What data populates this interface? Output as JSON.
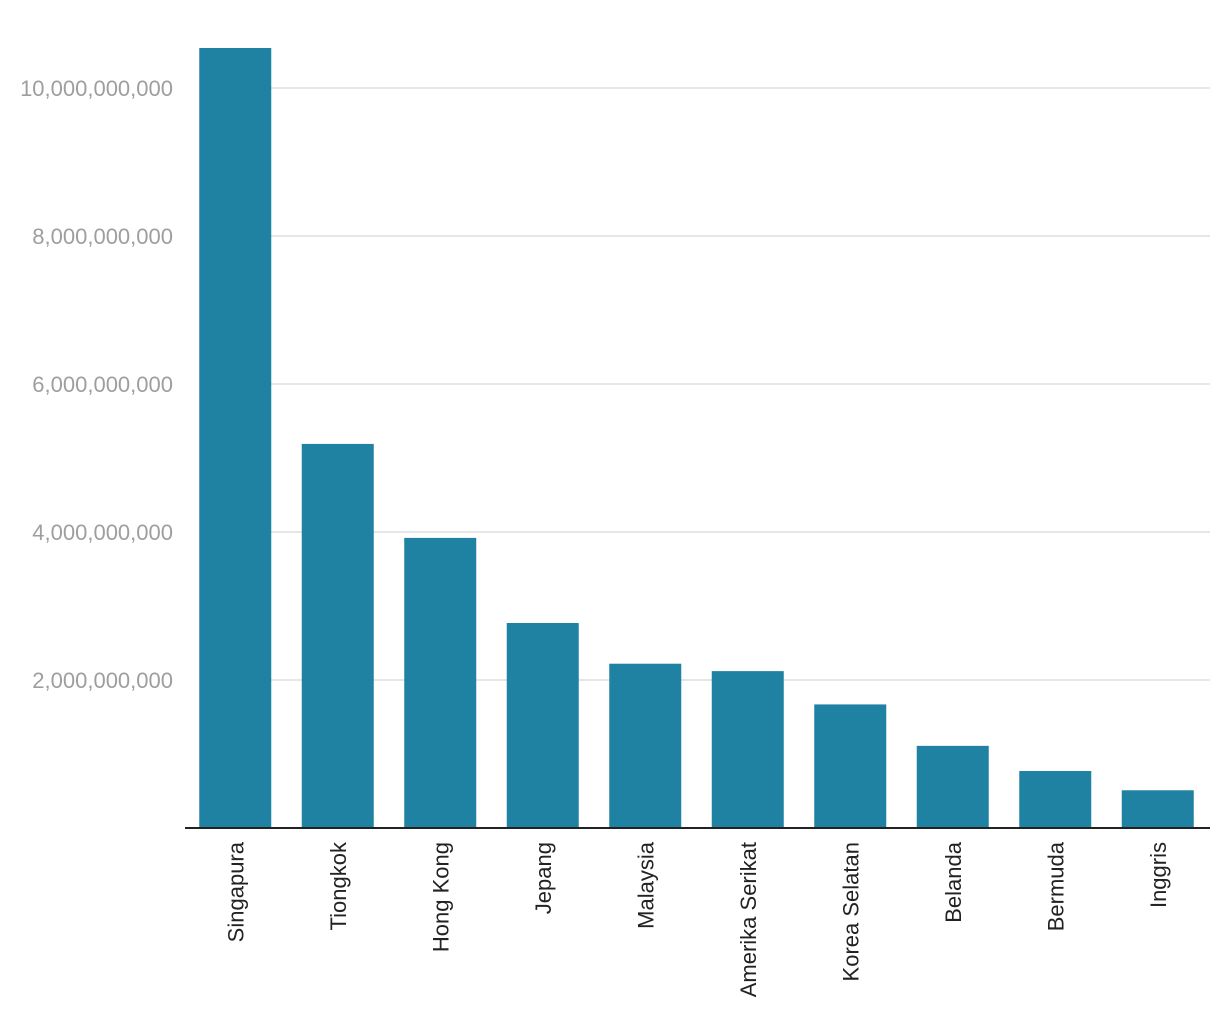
{
  "chart_data": {
    "type": "bar",
    "categories": [
      "Singapura",
      "Tiongkok",
      "Hong Kong",
      "Jepang",
      "Malaysia",
      "Amerika Serikat",
      "Korea Selatan",
      "Belanda",
      "Bermuda",
      "Inggris"
    ],
    "values": [
      10540000000,
      5190000000,
      3920000000,
      2770000000,
      2220000000,
      2120000000,
      1670000000,
      1110000000,
      770000000,
      510000000
    ],
    "ylim": [
      0,
      10540000000
    ],
    "yticks": [
      2000000000,
      4000000000,
      6000000000,
      8000000000,
      10000000000
    ],
    "ytick_labels": [
      "2,000,000,000",
      "4,000,000,000",
      "6,000,000,000",
      "8,000,000,000",
      "10,000,000,000"
    ],
    "grid": true,
    "legend": "none",
    "title": "",
    "xlabel": "",
    "ylabel": "",
    "bar_color": "#1f82a2",
    "grid_color": "#dedede",
    "axis_color": "#222222",
    "ytick_color": "#9e9e9e"
  }
}
